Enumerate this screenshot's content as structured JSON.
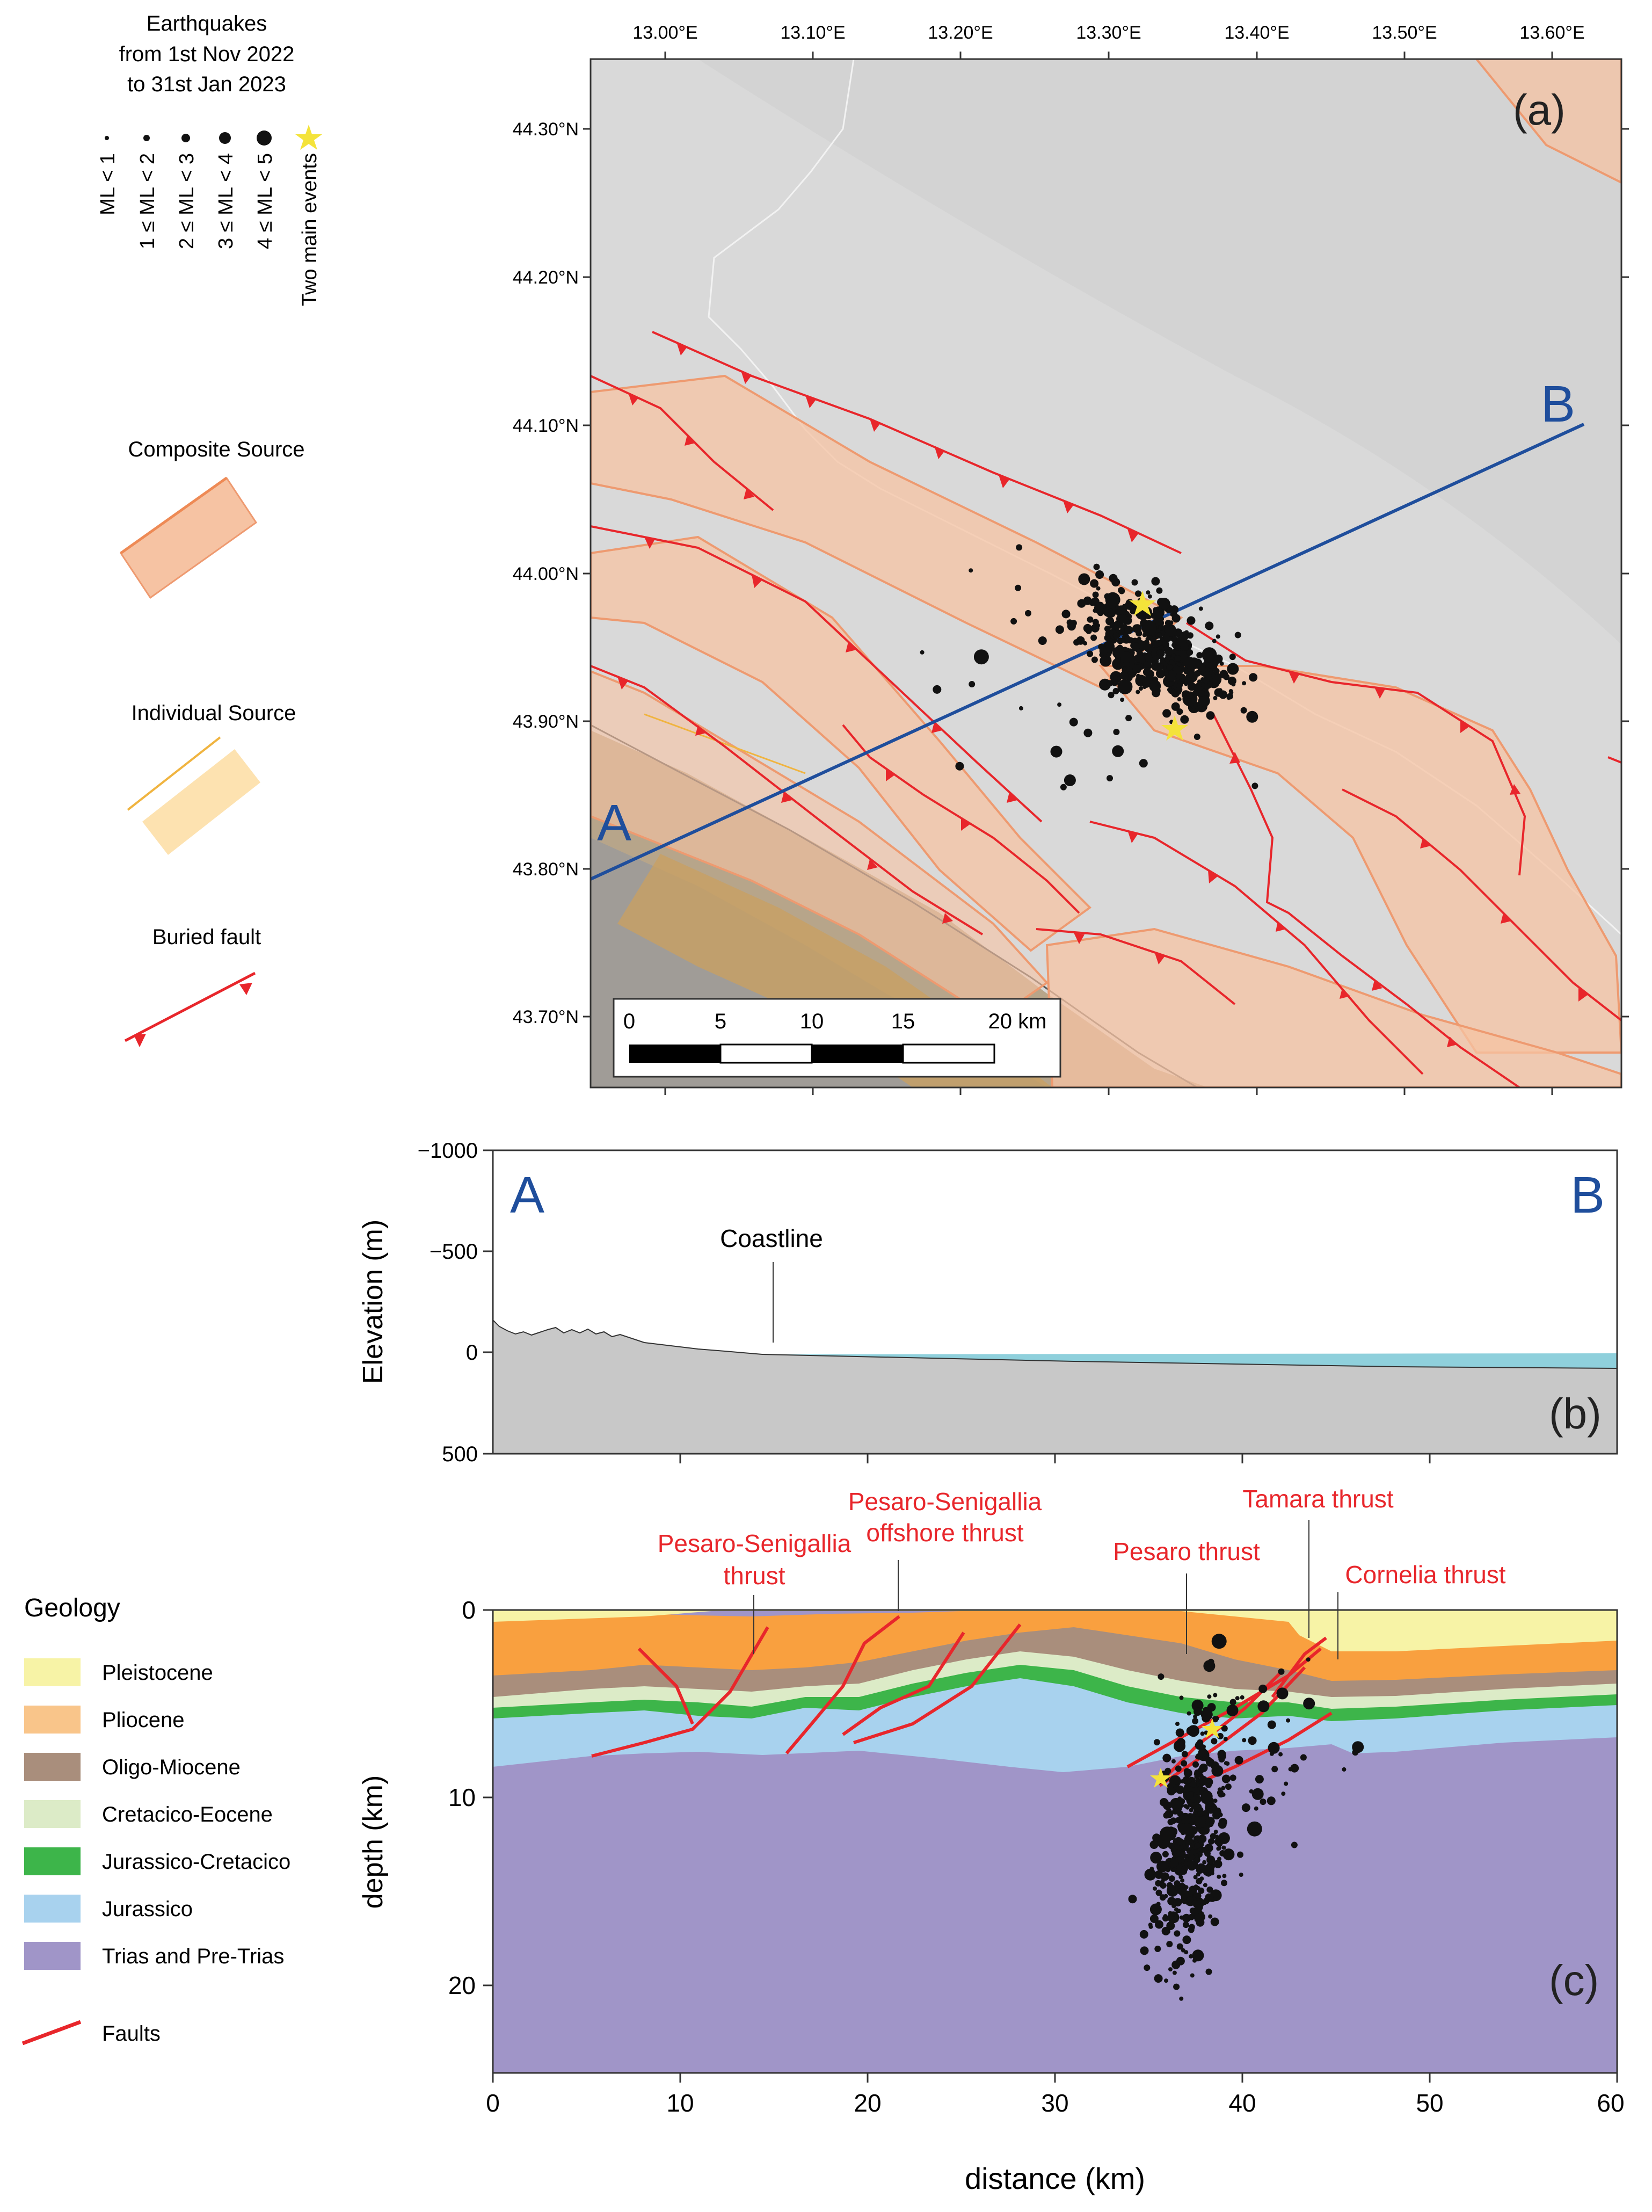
{
  "legend": {
    "eq_title": [
      "Earthquakes",
      "from 1st Nov 2022",
      "to 31st Jan 2023"
    ],
    "magnitude_classes": [
      "ML < 1",
      "1 ≤ ML < 2",
      "2 ≤ ML < 3",
      "3 ≤ ML < 4",
      "4 ≤ ML < 5",
      "Two main events"
    ],
    "composite_source": "Composite Source",
    "individual_source": "Individual Source",
    "buried_fault": "Buried fault",
    "geology_title": "Geology",
    "geology_units": [
      {
        "label": "Pleistocene",
        "color": "#f7f3a6"
      },
      {
        "label": "Pliocene",
        "color": "#f9c58a"
      },
      {
        "label": "Oligo-Miocene",
        "color": "#a98e7c"
      },
      {
        "label": "Cretacico-Eocene",
        "color": "#dcebc7"
      },
      {
        "label": "Jurassico-Cretacico",
        "color": "#3db54a"
      },
      {
        "label": "Jurassico",
        "color": "#a8d2ee"
      },
      {
        "label": "Trias and Pre-Trias",
        "color": "#a095c8"
      }
    ],
    "faults_label": "Faults"
  },
  "map": {
    "panel_label": "(a)",
    "lon_ticks": [
      "13.00°E",
      "13.10°E",
      "13.20°E",
      "13.30°E",
      "13.40°E",
      "13.50°E",
      "13.60°E"
    ],
    "lat_ticks": [
      "44.30°N",
      "44.20°N",
      "44.10°N",
      "44.00°N",
      "43.90°N",
      "43.80°N",
      "43.70°N"
    ],
    "point_a": "A",
    "point_b": "B",
    "scale_labels": [
      "0",
      "5",
      "10",
      "15",
      "20 km"
    ]
  },
  "profile": {
    "panel_label": "(b)",
    "ylabel": "Elevation (m)",
    "y_ticks": [
      "−1000",
      "−500",
      "0",
      "500"
    ],
    "point_a": "A",
    "point_b": "B",
    "coastline": "Coastline"
  },
  "section": {
    "panel_label": "(c)",
    "ylabel": "depth (km)",
    "xlabel": "distance (km)",
    "y_ticks": [
      "0",
      "10",
      "20"
    ],
    "x_ticks": [
      "0",
      "10",
      "20",
      "30",
      "40",
      "50",
      "60"
    ],
    "fault_labels": {
      "pesaro_senigallia": [
        "Pesaro-Senigallia",
        "thrust"
      ],
      "offshore": [
        "Pesaro-Senigallia",
        "offshore thrust"
      ],
      "pesaro": "Pesaro thrust",
      "tamara": "Tamara thrust",
      "cornelia": "Cornelia thrust"
    }
  },
  "colors": {
    "fault": "#e8262b",
    "profile_line": "#1f4e9c",
    "source_fill": "#f6c3a3",
    "source_edge": "#ee9a70",
    "star": "#f4e33a",
    "sea": "#d9d9d9"
  }
}
